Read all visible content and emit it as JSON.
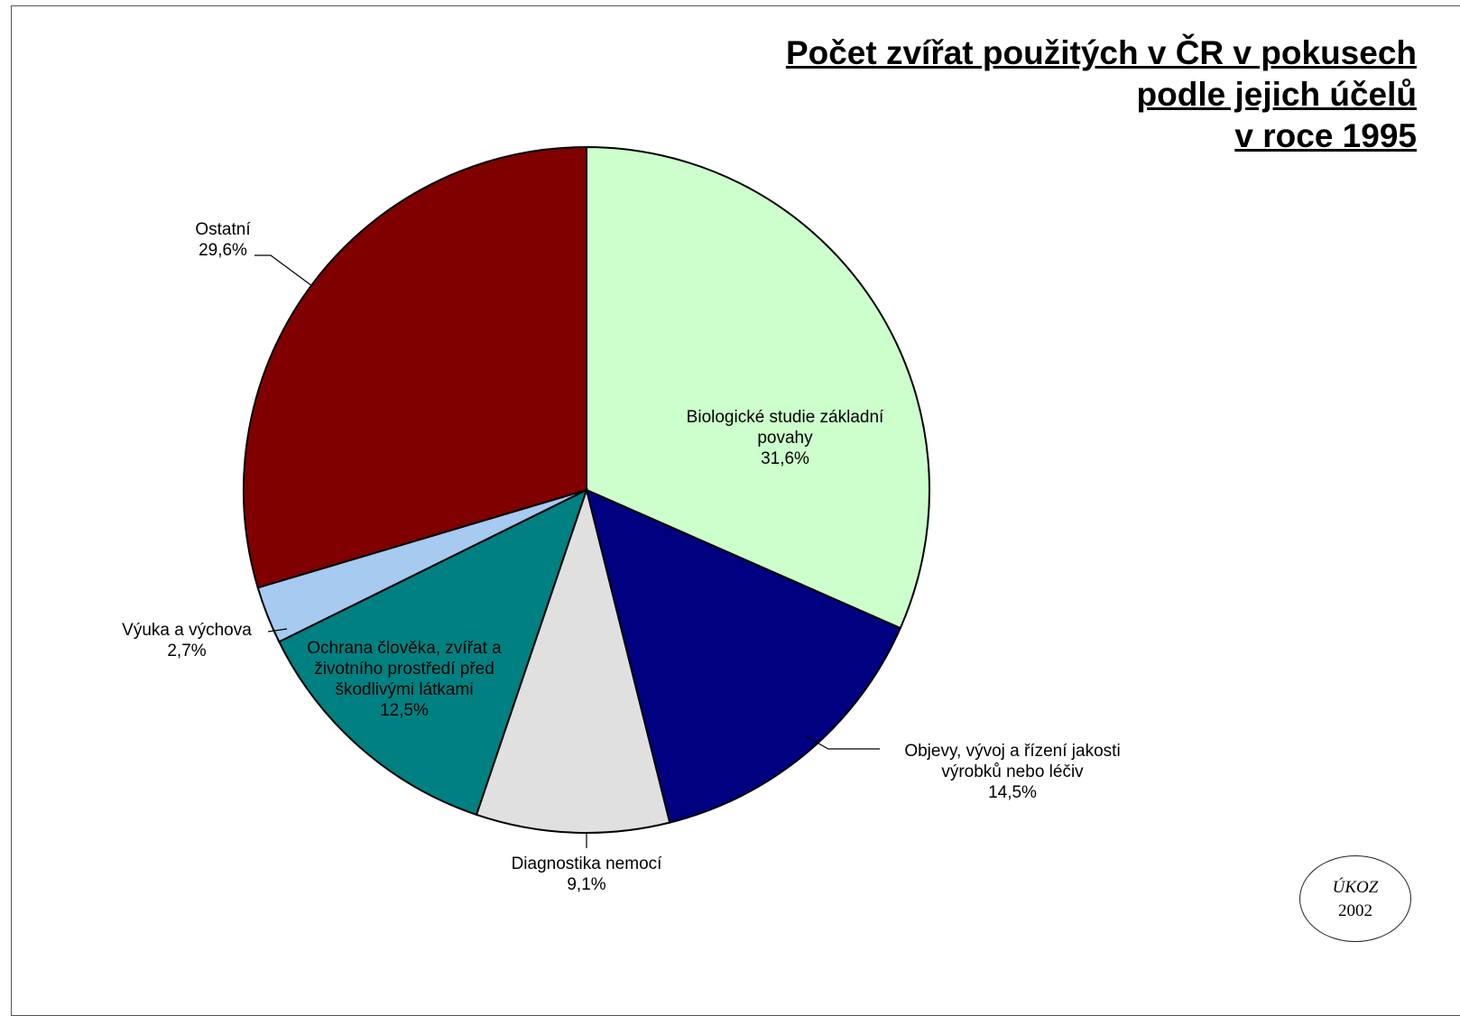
{
  "chart_data": {
    "type": "pie",
    "title": [
      "Počet zvířat použitých v ČR v pokusech",
      "podle jejich účelů",
      "v roce 1995"
    ],
    "slices": [
      {
        "label": [
          "Biologické studie základní",
          "povahy"
        ],
        "value": 31.6,
        "value_label": "31,6%",
        "color": "#ccffcc"
      },
      {
        "label": [
          "Objevy, vývoj a řízení jakosti",
          "výrobků nebo léčiv"
        ],
        "value": 14.5,
        "value_label": "14,5%",
        "color": "#000080"
      },
      {
        "label": [
          "Diagnostika nemocí"
        ],
        "value": 9.1,
        "value_label": "9,1%",
        "color": "#e0e0e0"
      },
      {
        "label": [
          "Ochrana člověka, zvířat a",
          "životního prostředí před",
          "škodlivými látkami"
        ],
        "value": 12.5,
        "value_label": "12,5%",
        "color": "#008080"
      },
      {
        "label": [
          "Výuka a výchova"
        ],
        "value": 2.7,
        "value_label": "2,7%",
        "color": "#a6caf0"
      },
      {
        "label": [
          "Ostatní"
        ],
        "value": 29.6,
        "value_label": "29,6%",
        "color": "#800000"
      }
    ]
  },
  "stamp": {
    "org": "ÚKOZ",
    "year": "2002"
  }
}
